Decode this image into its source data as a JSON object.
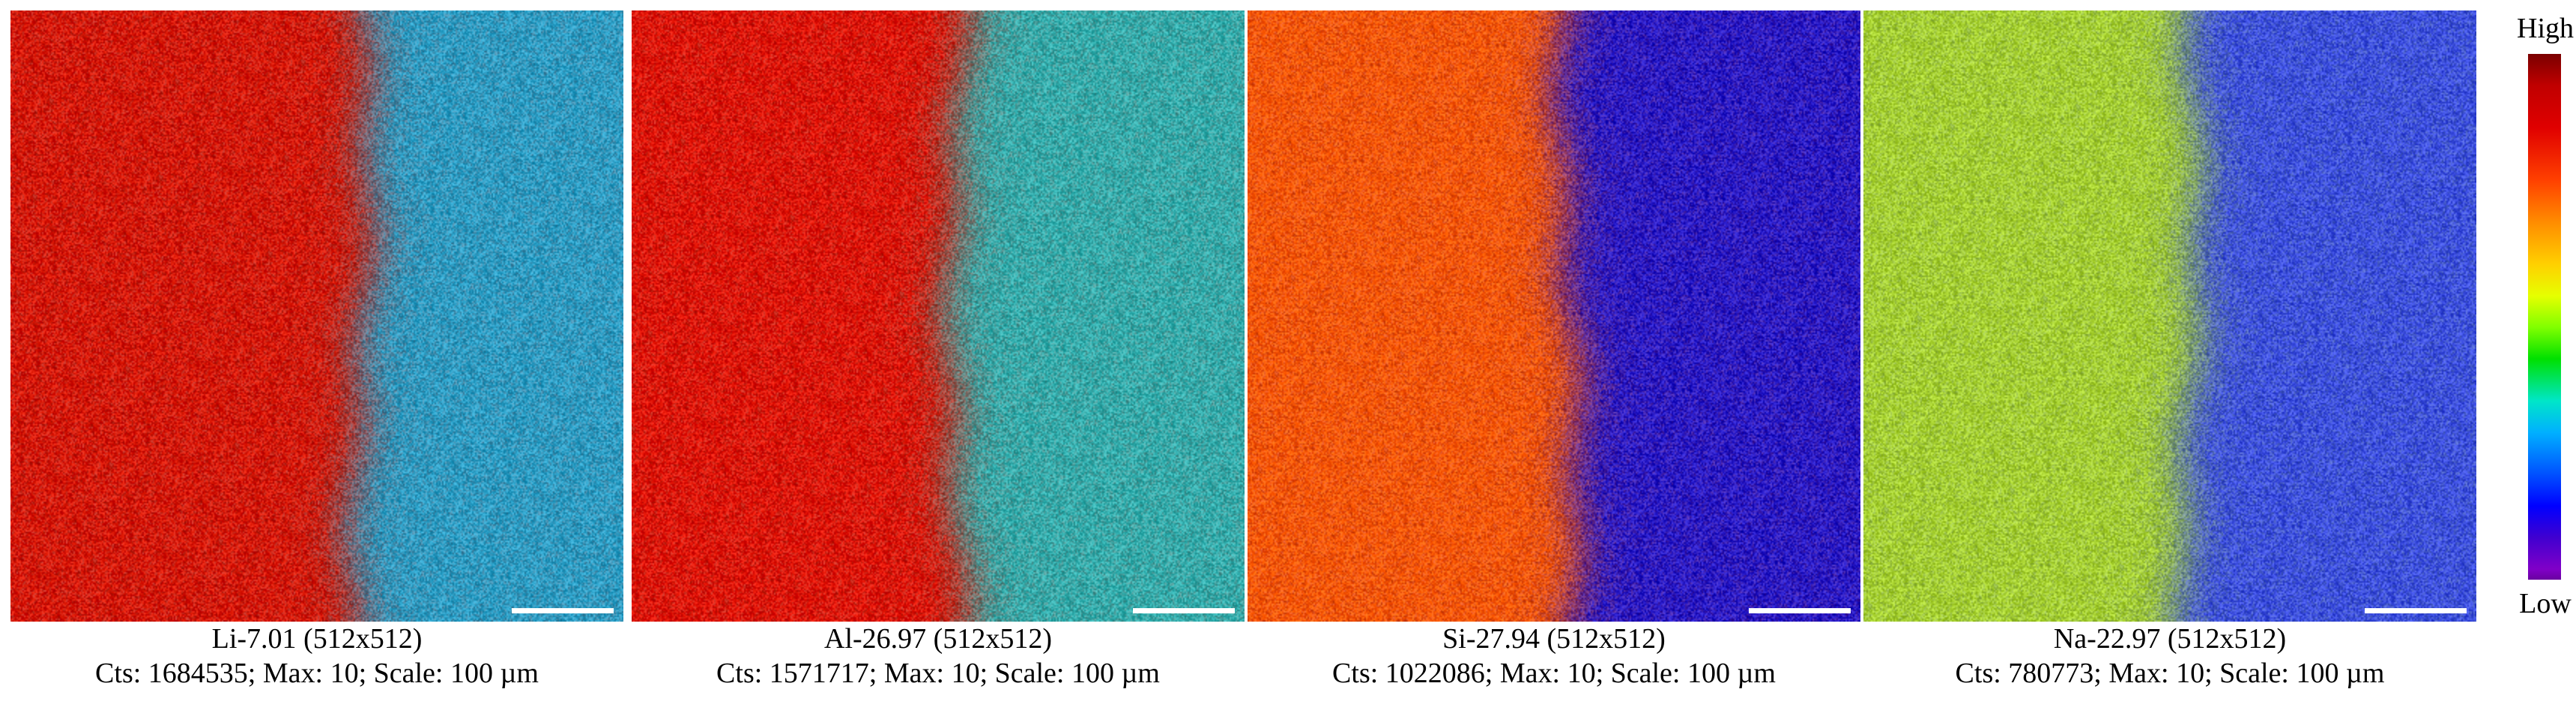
{
  "panels": [
    {
      "id": "li",
      "title": "Li-7.01 (512x512)",
      "stats": "Cts: 1684535; Max: 10; Scale: 100 µm",
      "boundary_fraction": 0.57,
      "left_region_color": "#d81400",
      "right_region_color": "#2aa0c8"
    },
    {
      "id": "al",
      "title": "Al-26.97 (512x512)",
      "stats": "Cts: 1571717; Max: 10; Scale: 100 µm",
      "boundary_fraction": 0.53,
      "left_region_color": "#e01000",
      "right_region_color": "#32b0b0"
    },
    {
      "id": "si",
      "title": "Si-27.94 (512x512)",
      "stats": "Cts: 1022086; Max: 10; Scale: 100 µm",
      "boundary_fraction": 0.52,
      "left_region_color": "#ff5a00",
      "right_region_color": "#2418c8"
    },
    {
      "id": "na",
      "title": "Na-22.97 (512x512)",
      "stats": "Cts: 780773; Max: 10; Scale: 100 µm",
      "boundary_fraction": 0.53,
      "left_region_color": "#a8d230",
      "right_region_color": "#3a4ce0"
    }
  ],
  "colorbar": {
    "high_label": "High",
    "low_label": "Low"
  }
}
